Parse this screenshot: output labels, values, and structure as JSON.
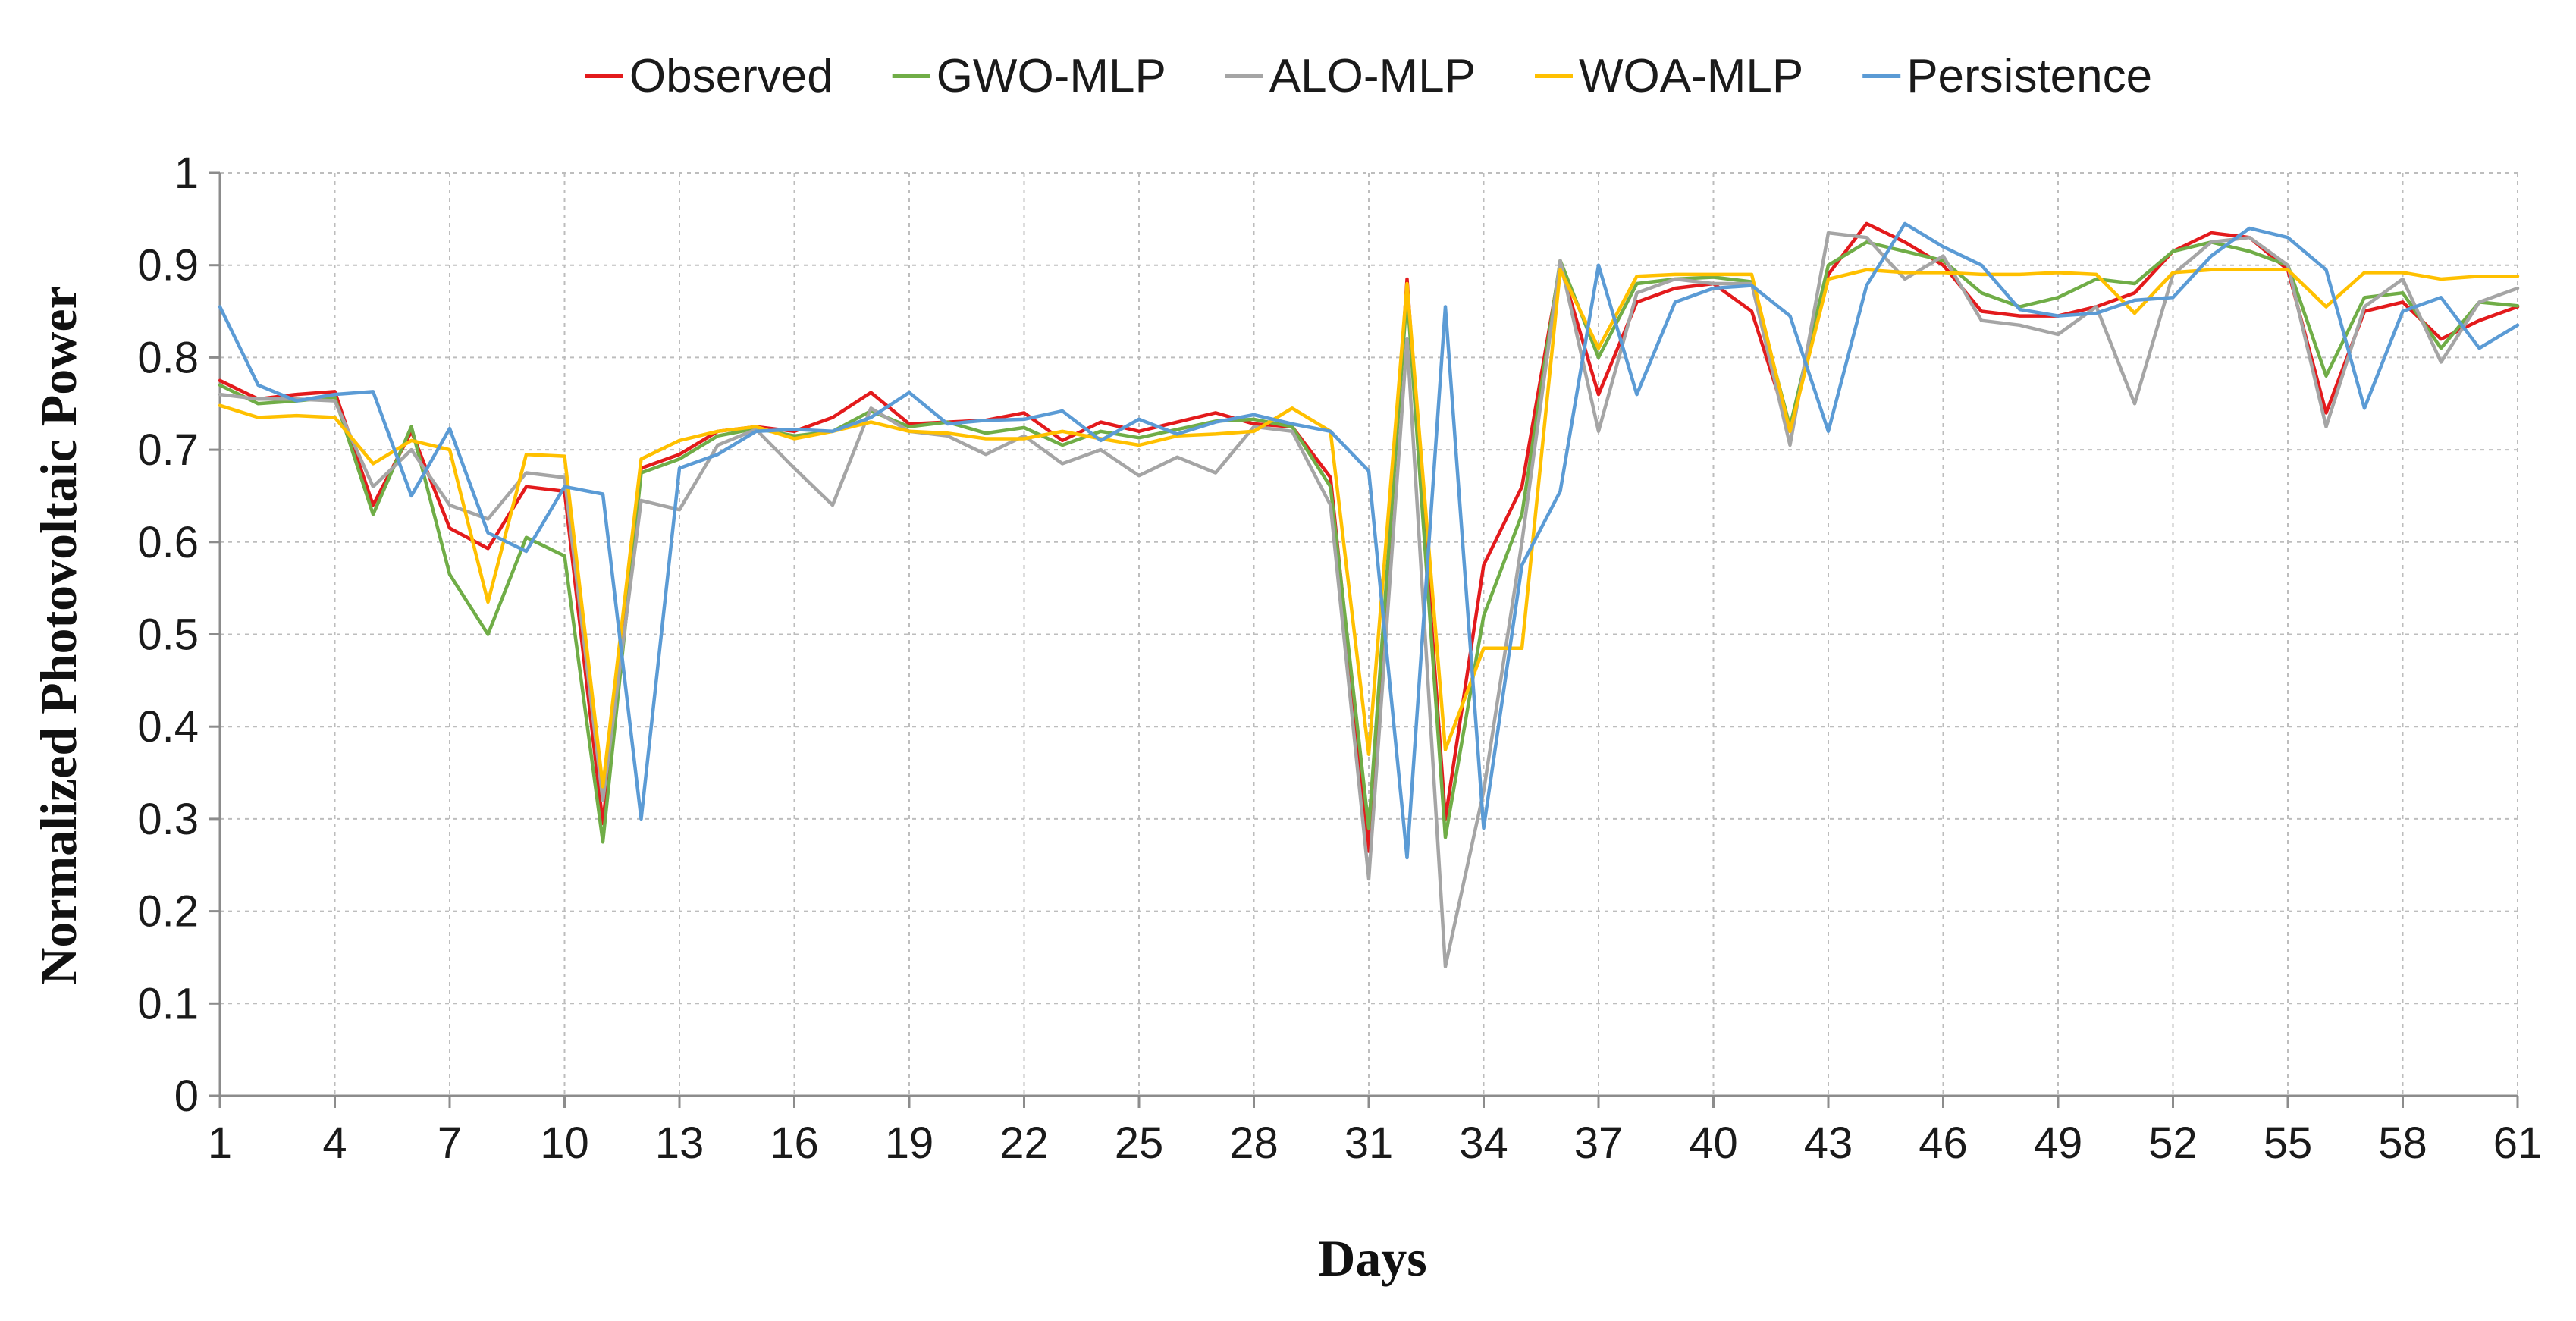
{
  "chart_data": {
    "type": "line",
    "title": "",
    "xlabel": "Days",
    "ylabel": "Normalized Photovoltaic Power",
    "xlim": [
      1,
      61
    ],
    "ylim": [
      0,
      1
    ],
    "x_ticks": [
      "1",
      "4",
      "7",
      "10",
      "13",
      "16",
      "19",
      "22",
      "25",
      "28",
      "31",
      "34",
      "37",
      "40",
      "43",
      "46",
      "49",
      "52",
      "55",
      "58",
      "61"
    ],
    "y_ticks": [
      "0",
      "0.1",
      "0.2",
      "0.3",
      "0.4",
      "0.5",
      "0.6",
      "0.7",
      "0.8",
      "0.9",
      "1"
    ],
    "x": [
      1,
      2,
      3,
      4,
      5,
      6,
      7,
      8,
      9,
      10,
      11,
      12,
      13,
      14,
      15,
      16,
      17,
      18,
      19,
      20,
      21,
      22,
      23,
      24,
      25,
      26,
      27,
      28,
      29,
      30,
      31,
      32,
      33,
      34,
      35,
      36,
      37,
      38,
      39,
      40,
      41,
      42,
      43,
      44,
      45,
      46,
      47,
      48,
      49,
      50,
      51,
      52,
      53,
      54,
      55,
      56,
      57,
      58,
      59,
      60,
      61
    ],
    "legend_position": "top",
    "series": [
      {
        "name": "Observed",
        "color": "#e31a1c",
        "values": [
          0.775,
          0.755,
          0.76,
          0.763,
          0.64,
          0.72,
          0.615,
          0.593,
          0.66,
          0.655,
          0.295,
          0.68,
          0.695,
          0.72,
          0.725,
          0.72,
          0.735,
          0.762,
          0.728,
          0.73,
          0.732,
          0.74,
          0.71,
          0.73,
          0.72,
          0.73,
          0.74,
          0.728,
          0.725,
          0.67,
          0.265,
          0.885,
          0.3,
          0.575,
          0.66,
          0.9,
          0.76,
          0.86,
          0.875,
          0.88,
          0.85,
          0.72,
          0.89,
          0.945,
          0.925,
          0.9,
          0.85,
          0.845,
          0.845,
          0.855,
          0.87,
          0.915,
          0.935,
          0.93,
          0.895,
          0.74,
          0.85,
          0.86,
          0.82,
          0.84,
          0.855
        ]
      },
      {
        "name": "GWO-MLP",
        "color": "#70ad47",
        "values": [
          0.77,
          0.75,
          0.753,
          0.757,
          0.63,
          0.725,
          0.565,
          0.5,
          0.605,
          0.585,
          0.275,
          0.675,
          0.69,
          0.715,
          0.723,
          0.715,
          0.72,
          0.742,
          0.725,
          0.73,
          0.718,
          0.724,
          0.705,
          0.72,
          0.713,
          0.722,
          0.731,
          0.733,
          0.725,
          0.66,
          0.29,
          0.87,
          0.28,
          0.52,
          0.63,
          0.905,
          0.8,
          0.88,
          0.885,
          0.887,
          0.882,
          0.725,
          0.9,
          0.925,
          0.915,
          0.905,
          0.87,
          0.855,
          0.865,
          0.885,
          0.88,
          0.915,
          0.925,
          0.915,
          0.9,
          0.78,
          0.865,
          0.87,
          0.81,
          0.86,
          0.856
        ]
      },
      {
        "name": "ALO-MLP",
        "color": "#a5a5a5",
        "values": [
          0.76,
          0.755,
          0.755,
          0.753,
          0.66,
          0.7,
          0.64,
          0.625,
          0.675,
          0.67,
          0.32,
          0.645,
          0.635,
          0.705,
          0.722,
          0.68,
          0.64,
          0.745,
          0.72,
          0.715,
          0.695,
          0.715,
          0.685,
          0.7,
          0.672,
          0.692,
          0.675,
          0.725,
          0.72,
          0.64,
          0.235,
          0.82,
          0.14,
          0.33,
          0.6,
          0.905,
          0.72,
          0.87,
          0.885,
          0.88,
          0.88,
          0.705,
          0.935,
          0.93,
          0.885,
          0.91,
          0.84,
          0.835,
          0.825,
          0.855,
          0.75,
          0.89,
          0.925,
          0.93,
          0.9,
          0.725,
          0.855,
          0.885,
          0.795,
          0.86,
          0.875
        ]
      },
      {
        "name": "WOA-MLP",
        "color": "#ffc000",
        "values": [
          0.748,
          0.735,
          0.737,
          0.735,
          0.685,
          0.71,
          0.7,
          0.535,
          0.695,
          0.693,
          0.335,
          0.69,
          0.71,
          0.72,
          0.725,
          0.712,
          0.72,
          0.73,
          0.72,
          0.718,
          0.712,
          0.712,
          0.72,
          0.712,
          0.705,
          0.715,
          0.717,
          0.72,
          0.745,
          0.72,
          0.37,
          0.88,
          0.375,
          0.485,
          0.485,
          0.895,
          0.81,
          0.888,
          0.89,
          0.89,
          0.89,
          0.72,
          0.885,
          0.895,
          0.892,
          0.892,
          0.89,
          0.89,
          0.892,
          0.89,
          0.848,
          0.892,
          0.895,
          0.895,
          0.895,
          0.855,
          0.892,
          0.892,
          0.885,
          0.888,
          0.888
        ]
      },
      {
        "name": "Persistence",
        "color": "#5b9bd5",
        "values": [
          0.855,
          0.77,
          0.753,
          0.76,
          0.763,
          0.65,
          0.723,
          0.61,
          0.59,
          0.66,
          0.652,
          0.3,
          0.68,
          0.695,
          0.72,
          0.722,
          0.72,
          0.735,
          0.762,
          0.728,
          0.732,
          0.733,
          0.742,
          0.71,
          0.733,
          0.717,
          0.73,
          0.738,
          0.728,
          0.72,
          0.677,
          0.258,
          0.855,
          0.29,
          0.575,
          0.655,
          0.9,
          0.76,
          0.86,
          0.875,
          0.878,
          0.845,
          0.72,
          0.878,
          0.945,
          0.92,
          0.9,
          0.852,
          0.845,
          0.848,
          0.862,
          0.865,
          0.91,
          0.94,
          0.93,
          0.895,
          0.745,
          0.85,
          0.865,
          0.81,
          0.835
        ]
      }
    ]
  }
}
